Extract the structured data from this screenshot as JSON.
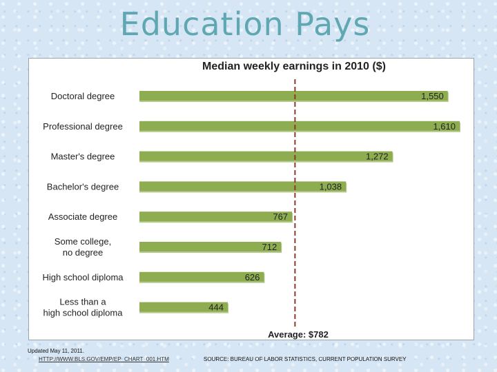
{
  "slide": {
    "title": "Education Pays",
    "updated": "Updated May 11, 2011.",
    "url": "HTTP://WWW.BLS.GOV/EMP/EP_CHART_001.HTM",
    "source": "SOURCE: BUREAU OF LABOR STATISTICS, CURRENT POPULATION SURVEY"
  },
  "chart_data": {
    "type": "bar",
    "orientation": "horizontal",
    "title": "Median weekly earnings in 2010 ($)",
    "categories": [
      [
        "Doctoral degree"
      ],
      [
        "Professional degree"
      ],
      [
        "Master's degree"
      ],
      [
        "Bachelor's degree"
      ],
      [
        "Associate degree"
      ],
      [
        "Some college,",
        "no degree"
      ],
      [
        "High school diploma"
      ],
      [
        "Less than a",
        "high school diploma"
      ]
    ],
    "values": [
      1550,
      1610,
      1272,
      1038,
      767,
      712,
      626,
      444
    ],
    "value_labels": [
      "1,550",
      "1,610",
      "1,272",
      "1,038",
      "767",
      "712",
      "626",
      "444"
    ],
    "xlim": [
      0,
      1610
    ],
    "reference_line": {
      "value": 782,
      "label": "Average: $782"
    },
    "bar_color": "#8dad50",
    "bar_shadow_color": "#b5c98d",
    "grid": false,
    "legend": "none"
  }
}
